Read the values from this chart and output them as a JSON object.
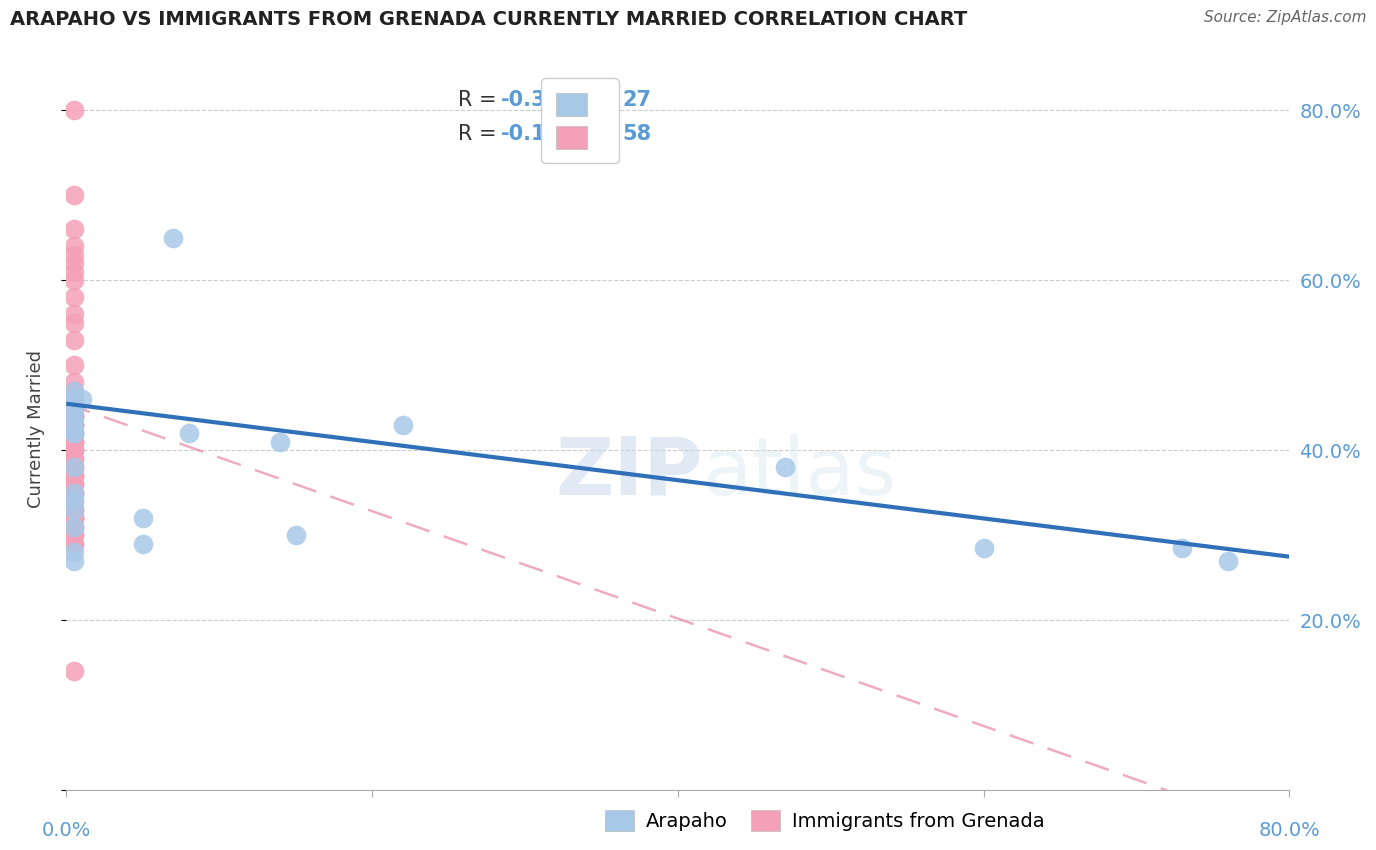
{
  "title": "ARAPAHO VS IMMIGRANTS FROM GRENADA CURRENTLY MARRIED CORRELATION CHART",
  "source_text": "Source: ZipAtlas.com",
  "ylabel": "Currently Married",
  "watermark": "ZIPatlas",
  "legend_blue_r": "R = -0.361",
  "legend_blue_n": "N = 27",
  "legend_pink_r": "R =  -0.111",
  "legend_pink_n": "N = 58",
  "yticks": [
    0.0,
    0.2,
    0.4,
    0.6,
    0.8
  ],
  "ytick_labels": [
    "",
    "20.0%",
    "40.0%",
    "60.0%",
    "80.0%"
  ],
  "xlim": [
    0.0,
    0.8
  ],
  "ylim": [
    0.0,
    0.85
  ],
  "blue_color": "#A8C8E8",
  "pink_color": "#F4A0B8",
  "blue_line_color": "#3070B8",
  "pink_line_color": "#E888A8",
  "arapaho_x": [
    0.01,
    0.07,
    0.005,
    0.005,
    0.005,
    0.005,
    0.005,
    0.22,
    0.005,
    0.005,
    0.005,
    0.08,
    0.14,
    0.005,
    0.47,
    0.005,
    0.005,
    0.005,
    0.05,
    0.005,
    0.15,
    0.05,
    0.005,
    0.005,
    0.6,
    0.73,
    0.76
  ],
  "arapaho_y": [
    0.46,
    0.65,
    0.47,
    0.46,
    0.46,
    0.45,
    0.44,
    0.43,
    0.43,
    0.42,
    0.42,
    0.42,
    0.41,
    0.38,
    0.38,
    0.35,
    0.34,
    0.33,
    0.32,
    0.31,
    0.3,
    0.29,
    0.28,
    0.27,
    0.285,
    0.285,
    0.27
  ],
  "grenada_x": [
    0.005,
    0.005,
    0.005,
    0.005,
    0.005,
    0.005,
    0.005,
    0.005,
    0.005,
    0.005,
    0.005,
    0.005,
    0.005,
    0.005,
    0.005,
    0.005,
    0.005,
    0.005,
    0.005,
    0.005,
    0.005,
    0.005,
    0.005,
    0.005,
    0.005,
    0.005,
    0.005,
    0.005,
    0.005,
    0.005,
    0.005,
    0.005,
    0.005,
    0.005,
    0.005,
    0.005,
    0.005,
    0.005,
    0.005,
    0.005,
    0.005,
    0.005,
    0.005,
    0.005,
    0.005,
    0.005,
    0.005,
    0.005,
    0.005,
    0.005,
    0.005,
    0.005,
    0.005,
    0.005,
    0.005,
    0.005,
    0.005,
    0.005
  ],
  "grenada_y": [
    0.8,
    0.7,
    0.66,
    0.64,
    0.63,
    0.62,
    0.61,
    0.6,
    0.58,
    0.56,
    0.55,
    0.53,
    0.5,
    0.48,
    0.47,
    0.46,
    0.46,
    0.45,
    0.45,
    0.44,
    0.44,
    0.44,
    0.43,
    0.43,
    0.43,
    0.42,
    0.42,
    0.41,
    0.41,
    0.41,
    0.4,
    0.4,
    0.4,
    0.39,
    0.39,
    0.38,
    0.38,
    0.37,
    0.37,
    0.37,
    0.36,
    0.36,
    0.35,
    0.35,
    0.35,
    0.34,
    0.33,
    0.33,
    0.32,
    0.32,
    0.32,
    0.31,
    0.31,
    0.3,
    0.3,
    0.29,
    0.29,
    0.14
  ],
  "blue_trend_x": [
    0.0,
    0.8
  ],
  "blue_trend_y": [
    0.455,
    0.275
  ],
  "pink_trend_x": [
    0.0,
    0.72
  ],
  "pink_trend_y": [
    0.455,
    0.0
  ],
  "grid_color": "#CCCCCC",
  "grid_linestyle": "--",
  "background_color": "#FFFFFF"
}
